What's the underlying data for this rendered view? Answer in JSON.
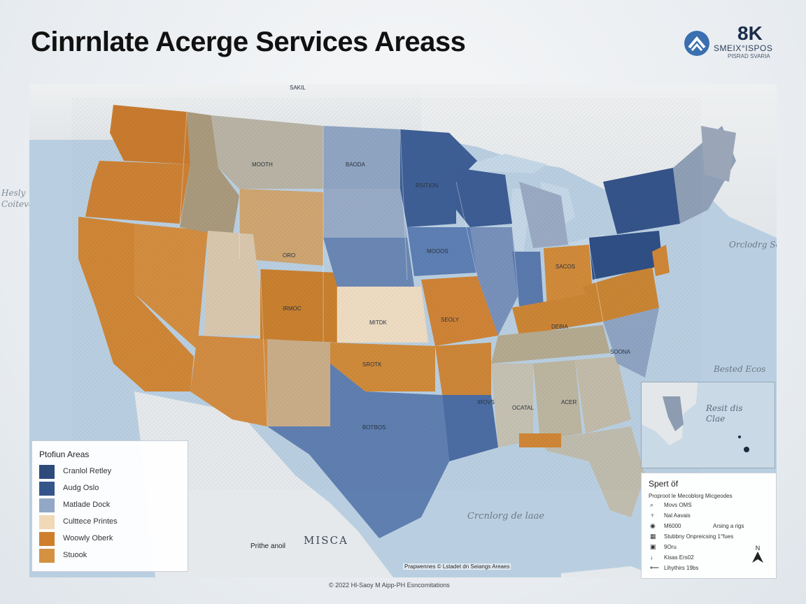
{
  "header": {
    "title": "Cinrnlate Acerge Services Areass",
    "logo_big": "8K",
    "logo_sub": "SMEIX°ISPOS",
    "logo_sub2": "PISRAD SVARIA"
  },
  "map_labels": {
    "top": "SAKIL",
    "mooth": "MOOTH",
    "baoda": "BAODA",
    "rotin": "RSITION",
    "mooo": "MOOOS",
    "oro": "ORO",
    "saco": "SACOS",
    "irmo": "IRMOC",
    "mitdk": "MITDK",
    "seol": "SEOLY",
    "deba": "DEBIA",
    "sroto": "SROTK",
    "botdo": "BOTBOS",
    "soona": "SOONA",
    "ocata": "OCATAL",
    "irova": "IROVS",
    "acer": "ACER",
    "misca": "MISCA",
    "pritt": "Prithe anoil",
    "left_ocean": "Hesly Coiteval",
    "right_ocean": "Orclodrg Sefob",
    "gulf": "Crcnlorg de laae",
    "bested": "Bested Ecos",
    "resit": "Resit dis Clae"
  },
  "legend": {
    "title": "Ptofiun Areas",
    "items": [
      {
        "label": "Cranlol Retley",
        "color": "#2d4a7a"
      },
      {
        "label": "Audg Oslo",
        "color": "#34558a"
      },
      {
        "label": "Matlade Dock",
        "color": "#93a8c6"
      },
      {
        "label": "Culttece Printes",
        "color": "#f1d8b6"
      },
      {
        "label": "Woowly Oberk",
        "color": "#cf7f2c"
      },
      {
        "label": "Stuook",
        "color": "#d49240"
      }
    ]
  },
  "inset": {
    "text": "Resit dis Clae"
  },
  "key_panel": {
    "title": "Spert öf",
    "subtitle": "Proproot le Mecoblorg Micgeodes",
    "rows": [
      {
        "icon": "search-icon",
        "glyph": "⌕",
        "label": "Movs OMS",
        "extra": ""
      },
      {
        "icon": "person-icon",
        "glyph": "♆",
        "label": "Nal Aavais",
        "extra": ""
      },
      {
        "icon": "pin-icon",
        "glyph": "◉",
        "label": "M6000",
        "extra": "Arsing a rigs"
      },
      {
        "icon": "grid-icon",
        "glyph": "▦",
        "label": "Stubbny Onpreicsing 1°fues",
        "extra": ""
      },
      {
        "icon": "building-icon",
        "glyph": "▣",
        "label": "9Oru",
        "extra": ""
      },
      {
        "icon": "arrow-icon",
        "glyph": "↓",
        "label": "Kisas Ers02",
        "extra": ""
      },
      {
        "icon": "line-icon",
        "glyph": "⟵",
        "label": "Lihythirs 19bs",
        "extra": ""
      }
    ],
    "north": "N"
  },
  "credit": "Prapwennes © Lstadet dn Seiangs Areaes",
  "footer": "© 2022 Hl-Saoy M Aipp-PH Esncomitations"
}
